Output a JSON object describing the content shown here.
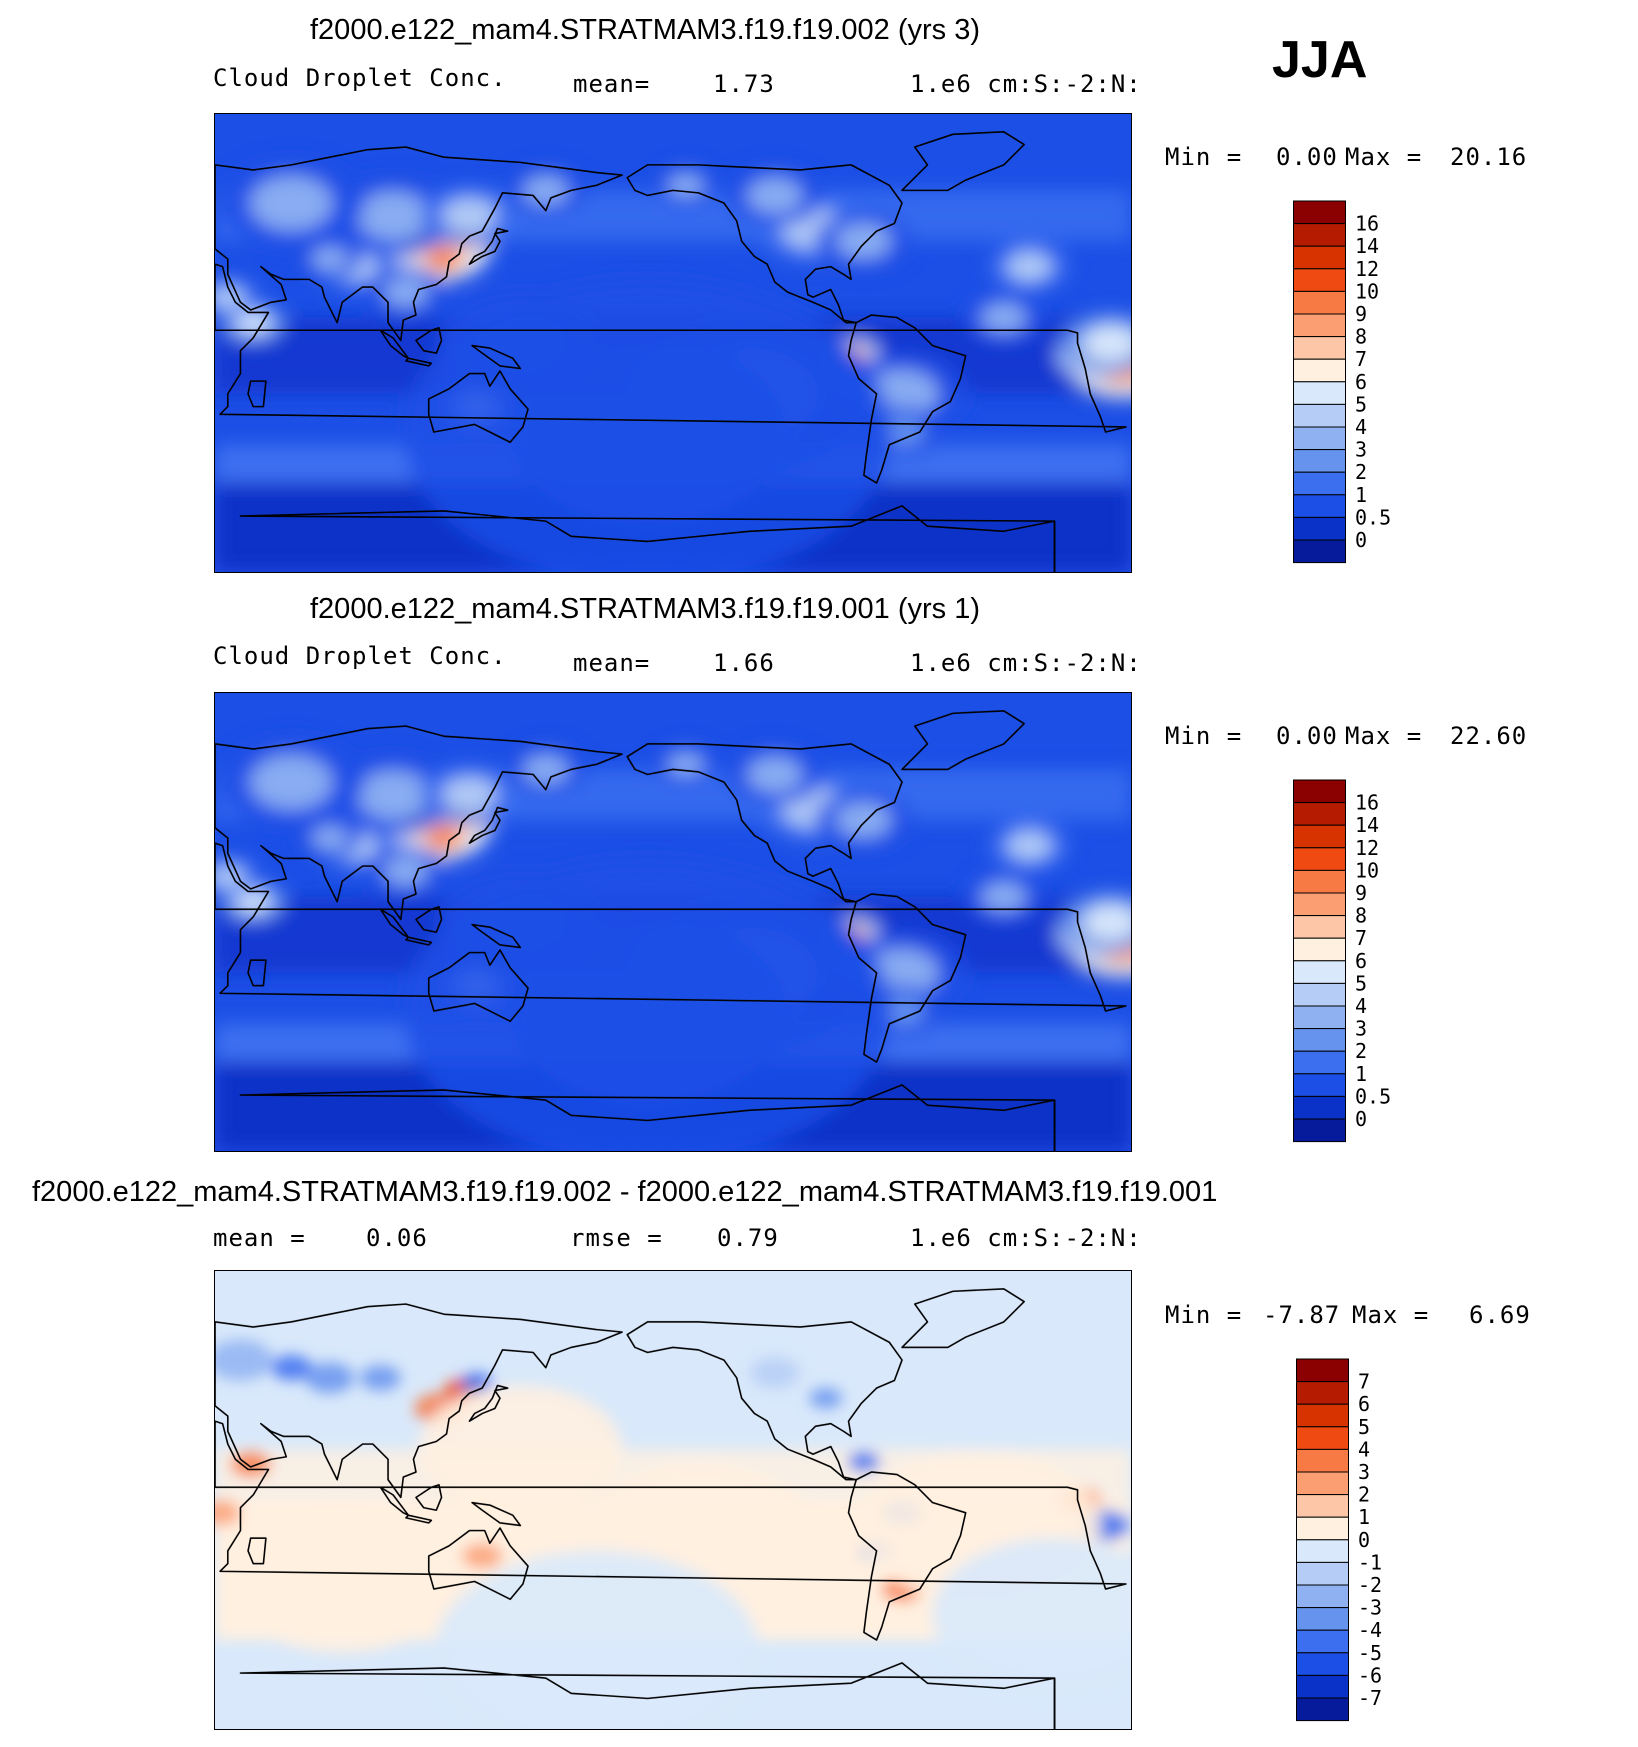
{
  "season_label": "JJA",
  "chart_data": [
    {
      "type": "heatmap",
      "title": "f2000.e122_mam4.STRATMAM3.f19.f19.002 (yrs 3)",
      "variable": "Cloud Droplet Conc.",
      "mean_label": "mean=",
      "mean_value": "1.73",
      "units": "1.e6 cm:S:-2:N:",
      "min_label": "Min =",
      "min_value": "0.00",
      "max_label": "Max =",
      "max_value": "20.16",
      "levels": [
        "16",
        "14",
        "12",
        "10",
        "9",
        "8",
        "7",
        "6",
        "5",
        "4",
        "3",
        "2",
        "1",
        "0.5",
        "0"
      ],
      "colors": [
        "#8b0000",
        "#b51b00",
        "#d63300",
        "#ef4a12",
        "#f77a45",
        "#fb9e72",
        "#fdc6a6",
        "#fff0e0",
        "#d9e9fb",
        "#b5cdf6",
        "#8fb1f2",
        "#6693ee",
        "#3c6ff0",
        "#1c4fe6",
        "#0a31c8",
        "#061b9c"
      ],
      "colorbar_type": "sequential"
    },
    {
      "type": "heatmap",
      "title": "f2000.e122_mam4.STRATMAM3.f19.f19.001 (yrs 1)",
      "variable": "Cloud Droplet Conc.",
      "mean_label": "mean=",
      "mean_value": "1.66",
      "units": "1.e6 cm:S:-2:N:",
      "min_label": "Min =",
      "min_value": "0.00",
      "max_label": "Max =",
      "max_value": "22.60",
      "levels": [
        "16",
        "14",
        "12",
        "10",
        "9",
        "8",
        "7",
        "6",
        "5",
        "4",
        "3",
        "2",
        "1",
        "0.5",
        "0"
      ],
      "colors": [
        "#8b0000",
        "#b51b00",
        "#d63300",
        "#ef4a12",
        "#f77a45",
        "#fb9e72",
        "#fdc6a6",
        "#fff0e0",
        "#d9e9fb",
        "#b5cdf6",
        "#8fb1f2",
        "#6693ee",
        "#3c6ff0",
        "#1c4fe6",
        "#0a31c8",
        "#061b9c"
      ],
      "colorbar_type": "sequential"
    },
    {
      "type": "heatmap",
      "title": "f2000.e122_mam4.STRATMAM3.f19.f19.002 - f2000.e122_mam4.STRATMAM3.f19.f19.001",
      "mean_label": "mean =",
      "mean_value": "0.06",
      "rmse_label": "rmse =",
      "rmse_value": "0.79",
      "units": "1.e6 cm:S:-2:N:",
      "min_label": "Min =",
      "min_value": "-7.87",
      "max_label": "Max =",
      "max_value": "6.69",
      "levels": [
        "7",
        "6",
        "5",
        "4",
        "3",
        "2",
        "1",
        "0",
        "-1",
        "-2",
        "-3",
        "-4",
        "-5",
        "-6",
        "-7"
      ],
      "colors": [
        "#8b0000",
        "#b51b00",
        "#d63300",
        "#ef4a12",
        "#f77a45",
        "#fb9e72",
        "#fdc6a6",
        "#fff0e0",
        "#d9e9fb",
        "#b5cdf6",
        "#8fb1f2",
        "#6693ee",
        "#3c6ff0",
        "#1c4fe6",
        "#0a31c8",
        "#061b9c"
      ],
      "colorbar_type": "diverging"
    }
  ]
}
